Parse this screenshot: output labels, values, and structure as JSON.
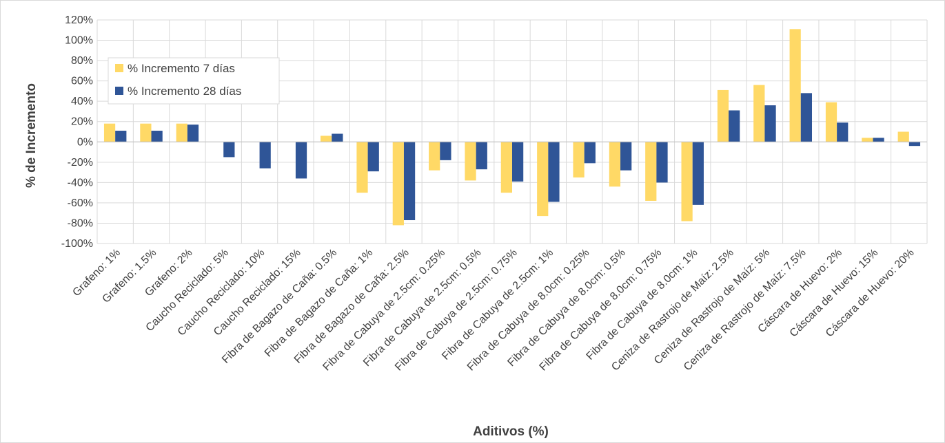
{
  "chart_data": {
    "type": "bar",
    "title": "",
    "xlabel": "Aditivos (%)",
    "ylabel": "% de Incremento",
    "ylim": [
      -100,
      120
    ],
    "y_ticks": [
      "-100%",
      "-80%",
      "-60%",
      "-40%",
      "-20%",
      "0%",
      "20%",
      "40%",
      "60%",
      "80%",
      "100%",
      "120%"
    ],
    "y_tick_values": [
      -100,
      -80,
      -60,
      -40,
      -20,
      0,
      20,
      40,
      60,
      80,
      100,
      120
    ],
    "grid": true,
    "legend_position": "top-left",
    "categories": [
      "Grafeno: 1%",
      "Grafeno: 1.5%",
      "Grafeno: 2%",
      "Caucho Reciclado: 5%",
      "Caucho Reciclado: 10%",
      "Caucho Reciclado: 15%",
      "Fibra de Bagazo de Caña: 0.5%",
      "Fibra de Bagazo de Caña: 1%",
      "Fibra de Bagazo de Caña: 2.5%",
      "Fibra de Cabuya de 2.5cm: 0.25%",
      "Fibra de Cabuya de 2.5cm: 0.5%",
      "Fibra de Cabuya de 2.5cm: 0.75%",
      "Fibra de Cabuya de 2.5cm: 1%",
      "Fibra de Cabuya de 8.0cm: 0.25%",
      "Fibra de Cabuya de 8.0cm: 0.5%",
      "Fibra de Cabuya de 8.0cm: 0.75%",
      "Fibra de Cabuya de 8.0cm: 1%",
      "Ceniza de Rastrojo de Maíz: 2.5%",
      "Ceniza de Rastrojo de Maíz: 5%",
      "Ceniza de Rastrojo de Maíz: 7.5%",
      "Cáscara de Huevo: 2%",
      "Cáscara de Huevo: 15%",
      "Cáscara de Huevo: 20%"
    ],
    "series": [
      {
        "name": "% Incremento 7 días",
        "color": "#FFD966",
        "values": [
          18,
          18,
          18,
          null,
          null,
          null,
          6,
          -50,
          -82,
          -28,
          -38,
          -50,
          -73,
          -35,
          -44,
          -58,
          -78,
          51,
          56,
          111,
          39,
          4,
          10
        ]
      },
      {
        "name": "% Incremento 28 días",
        "color": "#2F5597",
        "values": [
          11,
          11,
          17,
          -15,
          -26,
          -36,
          8,
          -29,
          -77,
          -18,
          -27,
          -39,
          -59,
          -21,
          -28,
          -40,
          -62,
          31,
          36,
          48,
          19,
          4,
          -4
        ]
      }
    ]
  }
}
